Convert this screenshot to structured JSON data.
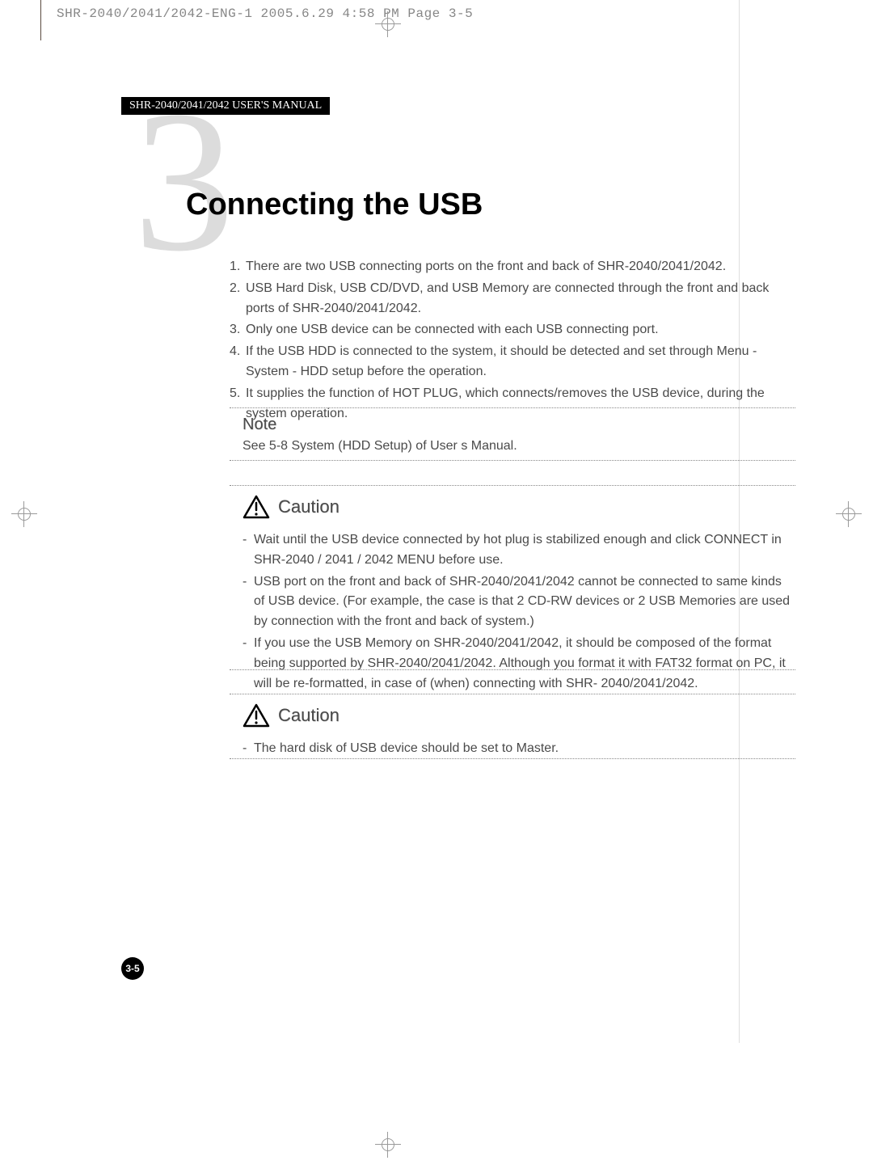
{
  "print_meta": "SHR-2040/2041/2042-ENG-1  2005.6.29  4:58 PM  Page 3-5",
  "running_header": "SHR-2040/2041/2042 USER'S MANUAL",
  "chapter_number": "3",
  "section_title": "Connecting the USB",
  "body_items": [
    {
      "n": "1.",
      "t": "There are two USB connecting ports on the front and back of SHR-2040/2041/2042."
    },
    {
      "n": "2.",
      "t": "USB Hard Disk, USB CD/DVD, and USB Memory are connected through the front and back ports of SHR-2040/2041/2042."
    },
    {
      "n": "3.",
      "t": "Only one USB device can be connected with each USB connecting port."
    },
    {
      "n": "4.",
      "t": "If the USB HDD is connected to the system, it should be detected and set through Menu - System - HDD setup before the operation."
    },
    {
      "n": "5.",
      "t": "It supplies the function of HOT PLUG, which connects/removes the USB device, during the system operation."
    }
  ],
  "note": {
    "heading": "Note",
    "text": "See 5-8 System (HDD Setup) of User s Manual."
  },
  "caution1": {
    "heading": "Caution",
    "items": [
      "Wait until the USB device connected by hot plug  is stabilized enough and click CONNECT in SHR-2040 / 2041 / 2042 MENU before use.",
      "USB port on the front and back of SHR-2040/2041/2042 cannot be connected to same kinds of USB device. (For example, the case is that 2 CD-RW devices or 2 USB Memories are used by connection with the front and back of system.)",
      "If you use the USB Memory on SHR-2040/2041/2042, it should be composed of the format being supported by SHR-2040/2041/2042. Although you format it with FAT32 format on PC, it will be re-formatted, in case of (when) connecting with SHR- 2040/2041/2042."
    ]
  },
  "caution2": {
    "heading": "Caution",
    "items": [
      "The hard disk of USB device should be set to Master."
    ]
  },
  "page_number": "3-5",
  "colors": {
    "text": "#4a4a4a",
    "title": "#000000",
    "ghost_number": "#dcdcdc",
    "header_bg": "#000000",
    "header_fg": "#ffffff",
    "dotted_rule": "#888888",
    "crop_mark": "#9a9a9a"
  }
}
